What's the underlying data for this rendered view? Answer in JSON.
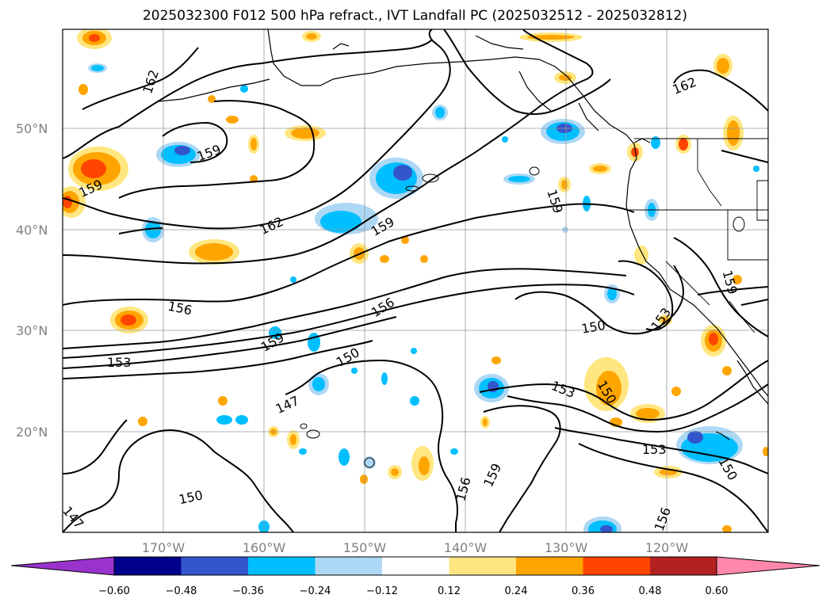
{
  "title": "2025032300 F012 500 hPa refract., IVT Landfall PC (2025032512 - 2025032812)",
  "lat_labels": [
    "50°N",
    "40°N",
    "30°N",
    "20°N"
  ],
  "lon_labels": [
    "170°W",
    "160°W",
    "150°W",
    "140°W",
    "130°W",
    "120°W"
  ],
  "contour_labels": [
    "162",
    "159",
    "159",
    "162",
    "159",
    "156",
    "156",
    "153",
    "159",
    "150",
    "147",
    "150",
    "147",
    "159",
    "156",
    "153",
    "150",
    "150",
    "159",
    "153",
    "150",
    "156",
    "162"
  ],
  "colorbar": {
    "ticks": [
      "−0.60",
      "−0.48",
      "−0.36",
      "−0.24",
      "−0.12",
      "0.12",
      "0.24",
      "0.36",
      "0.48",
      "0.60"
    ],
    "colors": [
      "#9933cc",
      "#00008b",
      "#3355cc",
      "#00bfff",
      "#add8f5",
      "#ffffff",
      "#ffe680",
      "#ffa500",
      "#ff4500",
      "#b22222",
      "#ff88aa"
    ]
  }
}
